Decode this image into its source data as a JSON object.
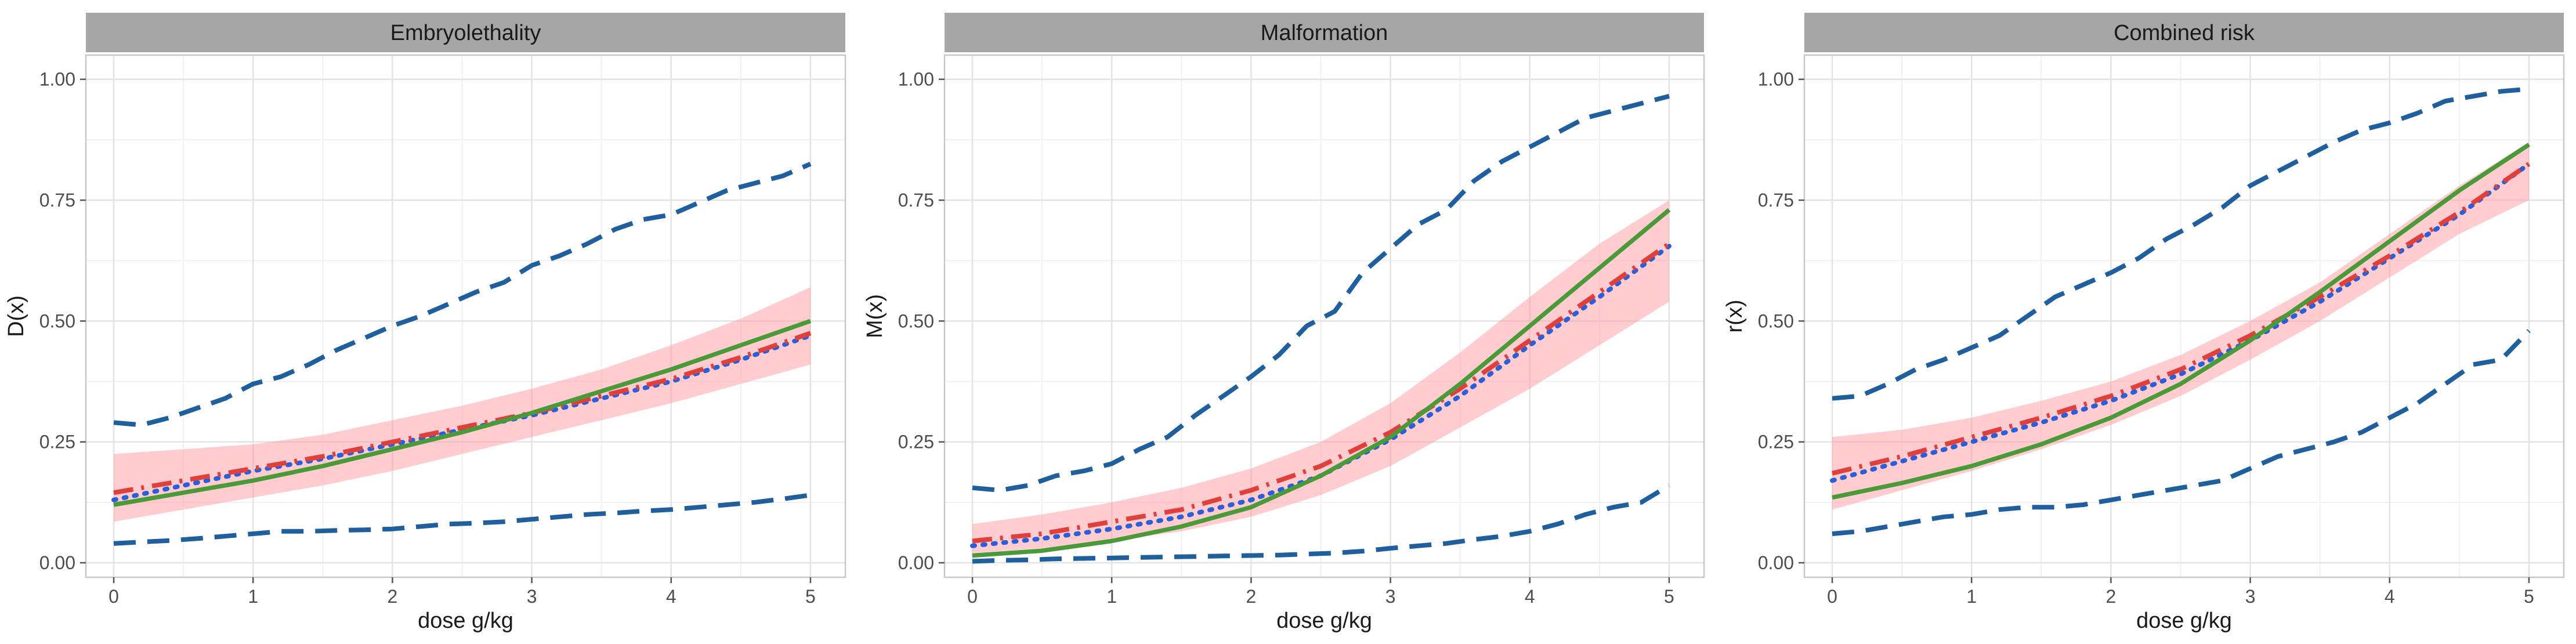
{
  "chart_data": [
    {
      "type": "line",
      "title": "Embryolethality",
      "xlabel": "dose g/kg",
      "ylabel": "D(x)",
      "xlim": [
        -0.2,
        5.25
      ],
      "ylim": [
        -0.03,
        1.05
      ],
      "xticks": [
        0,
        1,
        2,
        3,
        4,
        5
      ],
      "xtick_labels": [
        "0",
        "1",
        "2",
        "3",
        "4",
        "5"
      ],
      "yticks": [
        0,
        0.25,
        0.5,
        0.75,
        1
      ],
      "ytick_labels": [
        "0.00",
        "0.25",
        "0.50",
        "0.75",
        "1.00"
      ],
      "band": {
        "name": "confidence band",
        "x": [
          0,
          0.5,
          1,
          1.5,
          2,
          2.5,
          3,
          3.5,
          4,
          4.5,
          5
        ],
        "lower": [
          0.085,
          0.11,
          0.135,
          0.16,
          0.19,
          0.225,
          0.26,
          0.295,
          0.33,
          0.37,
          0.41
        ],
        "upper": [
          0.225,
          0.235,
          0.245,
          0.265,
          0.295,
          0.325,
          0.36,
          0.4,
          0.45,
          0.505,
          0.57
        ]
      },
      "series": [
        {
          "name": "upper bound",
          "style": "dashed",
          "color": "#1f5f9e",
          "x": [
            0,
            0.2,
            0.4,
            0.6,
            0.8,
            1.0,
            1.2,
            1.4,
            1.6,
            1.8,
            2.0,
            2.2,
            2.4,
            2.6,
            2.8,
            3.0,
            3.2,
            3.4,
            3.6,
            3.8,
            4.0,
            4.2,
            4.4,
            4.6,
            4.8,
            5.0
          ],
          "values": [
            0.29,
            0.285,
            0.3,
            0.32,
            0.34,
            0.37,
            0.385,
            0.41,
            0.44,
            0.465,
            0.49,
            0.51,
            0.535,
            0.56,
            0.58,
            0.615,
            0.635,
            0.66,
            0.69,
            0.71,
            0.72,
            0.745,
            0.77,
            0.785,
            0.8,
            0.825
          ]
        },
        {
          "name": "lower bound",
          "style": "dashed",
          "color": "#1f5f9e",
          "x": [
            0,
            0.2,
            0.4,
            0.6,
            0.8,
            1.0,
            1.2,
            1.4,
            1.6,
            1.8,
            2.0,
            2.2,
            2.4,
            2.6,
            2.8,
            3.0,
            3.2,
            3.4,
            3.6,
            3.8,
            4.0,
            4.2,
            4.4,
            4.6,
            4.8,
            5.0
          ],
          "values": [
            0.04,
            0.043,
            0.046,
            0.05,
            0.055,
            0.06,
            0.065,
            0.065,
            0.067,
            0.068,
            0.07,
            0.075,
            0.08,
            0.082,
            0.085,
            0.09,
            0.095,
            0.1,
            0.103,
            0.107,
            0.11,
            0.115,
            0.12,
            0.125,
            0.132,
            0.14
          ]
        },
        {
          "name": "dotted estimate",
          "style": "dotted",
          "color": "#2b5fd9",
          "x": [
            0,
            0.5,
            1,
            1.5,
            2,
            2.5,
            3,
            3.5,
            4,
            4.5,
            5
          ],
          "values": [
            0.13,
            0.16,
            0.19,
            0.215,
            0.245,
            0.275,
            0.305,
            0.34,
            0.375,
            0.42,
            0.47
          ]
        },
        {
          "name": "dash-dot estimate",
          "style": "dashdot",
          "color": "#e0403c",
          "x": [
            0,
            0.5,
            1,
            1.5,
            2,
            2.5,
            3,
            3.5,
            4,
            4.5,
            5
          ],
          "values": [
            0.145,
            0.17,
            0.195,
            0.22,
            0.25,
            0.28,
            0.31,
            0.345,
            0.38,
            0.425,
            0.475
          ]
        },
        {
          "name": "true curve",
          "style": "solid",
          "color": "#4a9a3a",
          "x": [
            0,
            0.5,
            1,
            1.5,
            2,
            2.5,
            3,
            3.5,
            4,
            4.5,
            5
          ],
          "values": [
            0.12,
            0.145,
            0.17,
            0.2,
            0.235,
            0.27,
            0.31,
            0.355,
            0.4,
            0.45,
            0.5
          ]
        }
      ]
    },
    {
      "type": "line",
      "title": "Malformation",
      "xlabel": "dose g/kg",
      "ylabel": "M(x)",
      "xlim": [
        -0.2,
        5.25
      ],
      "ylim": [
        -0.03,
        1.05
      ],
      "xticks": [
        0,
        1,
        2,
        3,
        4,
        5
      ],
      "xtick_labels": [
        "0",
        "1",
        "2",
        "3",
        "4",
        "5"
      ],
      "yticks": [
        0,
        0.25,
        0.5,
        0.75,
        1
      ],
      "ytick_labels": [
        "0.00",
        "0.25",
        "0.50",
        "0.75",
        "1.00"
      ],
      "band": {
        "name": "confidence band",
        "x": [
          0,
          0.5,
          1,
          1.5,
          2,
          2.5,
          3,
          3.5,
          4,
          4.5,
          5
        ],
        "lower": [
          0.02,
          0.03,
          0.045,
          0.065,
          0.095,
          0.14,
          0.2,
          0.28,
          0.36,
          0.45,
          0.54
        ],
        "upper": [
          0.08,
          0.1,
          0.125,
          0.155,
          0.195,
          0.25,
          0.33,
          0.435,
          0.55,
          0.66,
          0.75
        ]
      },
      "series": [
        {
          "name": "upper bound",
          "style": "dashed",
          "color": "#1f5f9e",
          "x": [
            0,
            0.2,
            0.4,
            0.6,
            0.8,
            1.0,
            1.2,
            1.4,
            1.6,
            1.8,
            2.0,
            2.2,
            2.4,
            2.6,
            2.8,
            3.0,
            3.2,
            3.4,
            3.6,
            3.8,
            4.0,
            4.2,
            4.4,
            4.6,
            4.8,
            5.0
          ],
          "values": [
            0.155,
            0.15,
            0.16,
            0.18,
            0.19,
            0.205,
            0.235,
            0.26,
            0.305,
            0.345,
            0.385,
            0.43,
            0.49,
            0.52,
            0.6,
            0.65,
            0.7,
            0.73,
            0.79,
            0.83,
            0.86,
            0.89,
            0.92,
            0.935,
            0.95,
            0.965
          ]
        },
        {
          "name": "lower bound",
          "style": "dashed",
          "color": "#1f5f9e",
          "x": [
            0,
            0.2,
            0.4,
            0.6,
            0.8,
            1.0,
            1.2,
            1.4,
            1.6,
            1.8,
            2.0,
            2.2,
            2.4,
            2.6,
            2.8,
            3.0,
            3.2,
            3.4,
            3.6,
            3.8,
            4.0,
            4.2,
            4.4,
            4.6,
            4.8,
            5.0
          ],
          "values": [
            0.003,
            0.005,
            0.006,
            0.008,
            0.009,
            0.01,
            0.011,
            0.012,
            0.013,
            0.014,
            0.015,
            0.016,
            0.018,
            0.02,
            0.024,
            0.03,
            0.035,
            0.04,
            0.048,
            0.055,
            0.065,
            0.08,
            0.1,
            0.115,
            0.125,
            0.16
          ]
        },
        {
          "name": "dotted estimate",
          "style": "dotted",
          "color": "#2b5fd9",
          "x": [
            0,
            0.5,
            1,
            1.5,
            2,
            2.5,
            3,
            3.5,
            4,
            4.5,
            5
          ],
          "values": [
            0.035,
            0.05,
            0.07,
            0.095,
            0.13,
            0.18,
            0.255,
            0.345,
            0.45,
            0.55,
            0.655
          ]
        },
        {
          "name": "dash-dot estimate",
          "style": "dashdot",
          "color": "#e0403c",
          "x": [
            0,
            0.5,
            1,
            1.5,
            2,
            2.5,
            3,
            3.5,
            4,
            4.5,
            5
          ],
          "values": [
            0.045,
            0.06,
            0.085,
            0.11,
            0.15,
            0.2,
            0.27,
            0.36,
            0.46,
            0.56,
            0.66
          ]
        },
        {
          "name": "true curve",
          "style": "solid",
          "color": "#4a9a3a",
          "x": [
            0,
            0.5,
            1,
            1.5,
            2,
            2.5,
            3,
            3.5,
            4,
            4.5,
            5
          ],
          "values": [
            0.015,
            0.025,
            0.045,
            0.075,
            0.115,
            0.18,
            0.26,
            0.37,
            0.49,
            0.61,
            0.73
          ]
        }
      ]
    },
    {
      "type": "line",
      "title": "Combined risk",
      "xlabel": "dose g/kg",
      "ylabel": "r(x)",
      "xlim": [
        -0.2,
        5.25
      ],
      "ylim": [
        -0.03,
        1.05
      ],
      "xticks": [
        0,
        1,
        2,
        3,
        4,
        5
      ],
      "xtick_labels": [
        "0",
        "1",
        "2",
        "3",
        "4",
        "5"
      ],
      "yticks": [
        0,
        0.25,
        0.5,
        0.75,
        1
      ],
      "ytick_labels": [
        "0.00",
        "0.25",
        "0.50",
        "0.75",
        "1.00"
      ],
      "band": {
        "name": "confidence band",
        "x": [
          0,
          0.5,
          1,
          1.5,
          2,
          2.5,
          3,
          3.5,
          4,
          4.5,
          5
        ],
        "lower": [
          0.11,
          0.15,
          0.19,
          0.235,
          0.285,
          0.345,
          0.42,
          0.5,
          0.59,
          0.68,
          0.75
        ],
        "upper": [
          0.26,
          0.275,
          0.3,
          0.335,
          0.375,
          0.43,
          0.5,
          0.58,
          0.68,
          0.78,
          0.87
        ]
      },
      "series": [
        {
          "name": "upper bound",
          "style": "dashed",
          "color": "#1f5f9e",
          "x": [
            0,
            0.2,
            0.4,
            0.6,
            0.8,
            1.0,
            1.2,
            1.4,
            1.6,
            1.8,
            2.0,
            2.2,
            2.4,
            2.6,
            2.8,
            3.0,
            3.2,
            3.4,
            3.6,
            3.8,
            4.0,
            4.2,
            4.4,
            4.6,
            4.8,
            5.0
          ],
          "values": [
            0.34,
            0.345,
            0.37,
            0.4,
            0.42,
            0.445,
            0.47,
            0.51,
            0.55,
            0.575,
            0.6,
            0.63,
            0.67,
            0.7,
            0.735,
            0.78,
            0.81,
            0.84,
            0.87,
            0.895,
            0.91,
            0.93,
            0.955,
            0.965,
            0.975,
            0.98
          ]
        },
        {
          "name": "lower bound",
          "style": "dashed",
          "color": "#1f5f9e",
          "x": [
            0,
            0.2,
            0.4,
            0.6,
            0.8,
            1.0,
            1.2,
            1.4,
            1.6,
            1.8,
            2.0,
            2.2,
            2.4,
            2.6,
            2.8,
            3.0,
            3.2,
            3.4,
            3.6,
            3.8,
            4.0,
            4.2,
            4.4,
            4.6,
            4.8,
            5.0
          ],
          "values": [
            0.06,
            0.065,
            0.075,
            0.085,
            0.095,
            0.1,
            0.11,
            0.115,
            0.115,
            0.12,
            0.13,
            0.14,
            0.15,
            0.16,
            0.17,
            0.195,
            0.22,
            0.235,
            0.25,
            0.27,
            0.3,
            0.33,
            0.37,
            0.41,
            0.42,
            0.48
          ]
        },
        {
          "name": "dotted estimate",
          "style": "dotted",
          "color": "#2b5fd9",
          "x": [
            0,
            0.5,
            1,
            1.5,
            2,
            2.5,
            3,
            3.5,
            4,
            4.5,
            5
          ],
          "values": [
            0.17,
            0.21,
            0.25,
            0.29,
            0.335,
            0.39,
            0.46,
            0.54,
            0.63,
            0.72,
            0.825
          ]
        },
        {
          "name": "dash-dot estimate",
          "style": "dashdot",
          "color": "#e0403c",
          "x": [
            0,
            0.5,
            1,
            1.5,
            2,
            2.5,
            3,
            3.5,
            4,
            4.5,
            5
          ],
          "values": [
            0.185,
            0.22,
            0.26,
            0.3,
            0.345,
            0.4,
            0.47,
            0.55,
            0.635,
            0.725,
            0.825
          ]
        },
        {
          "name": "true curve",
          "style": "solid",
          "color": "#4a9a3a",
          "x": [
            0,
            0.5,
            1,
            1.5,
            2,
            2.5,
            3,
            3.5,
            4,
            4.5,
            5
          ],
          "values": [
            0.135,
            0.165,
            0.2,
            0.245,
            0.3,
            0.37,
            0.46,
            0.56,
            0.665,
            0.77,
            0.865
          ]
        }
      ]
    }
  ],
  "colors": {
    "band_fill": "#ff9aa2",
    "strip_fill": "#a6a6a6",
    "grid_major": "#e3e3e3",
    "grid_minor": "#f1f1f1",
    "panel_border": "#c8c8c8",
    "axis_text": "#4d4d4d"
  }
}
